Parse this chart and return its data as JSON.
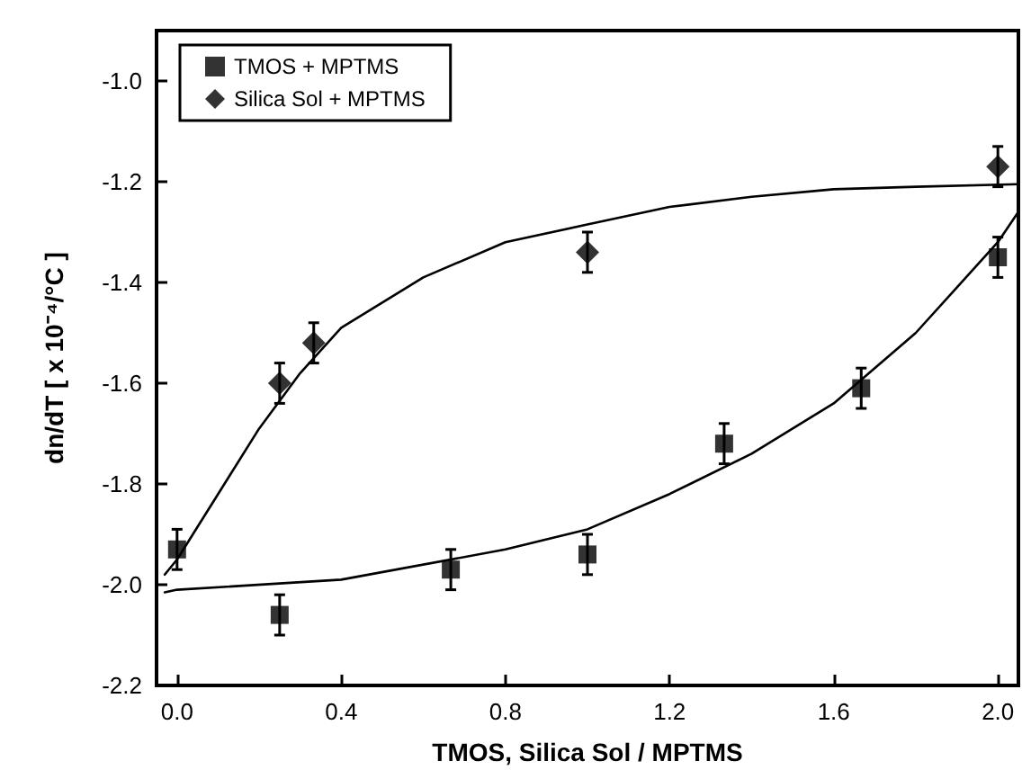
{
  "chart_data": {
    "type": "scatter",
    "xlabel": "TMOS, Silica Sol / MPTMS",
    "ylabel": "dn/dT [ x 10⁻⁴/°C ]",
    "xlim": [
      -0.05,
      2.05
    ],
    "xticks": [
      {
        "value": 0,
        "label": "0.0"
      },
      0.4,
      0.8,
      1.2,
      1.6,
      {
        "value": 2,
        "label": "2.0"
      }
    ],
    "ylim": [
      -2.2,
      -0.9
    ],
    "yticks": [
      -2.2,
      {
        "value": -2,
        "label": "-2.0"
      },
      -1.8,
      -1.6,
      -1.4,
      -1.2,
      {
        "value": -1,
        "label": "-1.0"
      }
    ],
    "grid": false,
    "legend": "top left",
    "series": [
      {
        "name": "TMOS + MPTMS",
        "marker": "square",
        "color": "#000000",
        "x": [
          0,
          0.25,
          0.667,
          1.0,
          1.333,
          1.667,
          2.0
        ],
        "values": [
          -1.93,
          -2.06,
          -1.97,
          -1.94,
          -1.72,
          -1.61,
          -1.35
        ],
        "errors": [
          0.04,
          0.04,
          0.04,
          0.04,
          0.04,
          0.04,
          0.04
        ]
      },
      {
        "name": "Silica Sol + MPTMS",
        "marker": "diamond",
        "color": "#000000",
        "x": [
          0.25,
          0.333,
          1.0,
          2.0
        ],
        "values": [
          -1.6,
          -1.52,
          -1.34,
          -1.17
        ],
        "errors": [
          0.04,
          0.04,
          0.04,
          0.04
        ]
      },
      {
        "type": "line",
        "marker": "none",
        "color": "#000000",
        "x": [
          -0.03,
          0,
          0.4,
          0.8,
          1.0,
          1.2,
          1.4,
          1.6,
          1.8,
          1.9,
          2.0,
          2.05
        ],
        "values": [
          -2.015,
          -2.01,
          -1.99,
          -1.93,
          -1.89,
          -1.82,
          -1.74,
          -1.64,
          -1.5,
          -1.41,
          -1.32,
          -1.26
        ]
      },
      {
        "type": "line",
        "marker": "none",
        "color": "#000000",
        "x": [
          -0.03,
          0,
          0.1,
          0.2,
          0.3,
          0.4,
          0.6,
          0.8,
          1.0,
          1.2,
          1.4,
          1.6,
          1.8,
          2.05
        ],
        "values": [
          -1.98,
          -1.95,
          -1.82,
          -1.69,
          -1.58,
          -1.49,
          -1.39,
          -1.32,
          -1.285,
          -1.25,
          -1.23,
          -1.215,
          -1.21,
          -1.205
        ]
      }
    ]
  }
}
